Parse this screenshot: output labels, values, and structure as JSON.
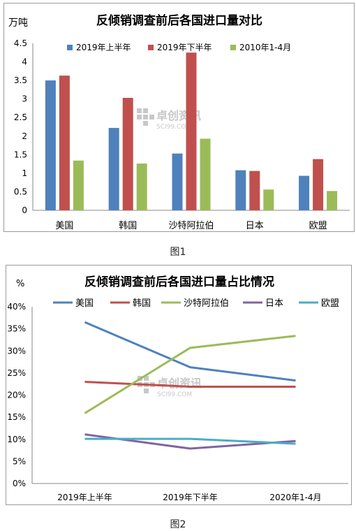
{
  "figure_captions": [
    "图1",
    "图2"
  ],
  "watermark": {
    "text": "卓创资讯",
    "sub": "SCI99.COM"
  },
  "chart_data": [
    {
      "type": "bar",
      "title": "反倾销调查前后各国进口量对比",
      "ylabel": "万吨",
      "xlabel": "",
      "ylim": [
        0,
        4.5
      ],
      "yticks": [
        "0",
        "0.5",
        "1",
        "1.5",
        "2",
        "2.5",
        "3",
        "3.5",
        "4",
        "4.5"
      ],
      "categories": [
        "美国",
        "韩国",
        "沙特阿拉伯",
        "日本",
        "欧盟"
      ],
      "series": [
        {
          "name": "2019年上半年",
          "color": "#4f81bd",
          "values": [
            3.5,
            2.22,
            1.53,
            1.08,
            0.93
          ]
        },
        {
          "name": "2019年下半年",
          "color": "#c0504d",
          "values": [
            3.63,
            3.03,
            4.25,
            1.06,
            1.38
          ]
        },
        {
          "name": "2010年1-4月",
          "color": "#9bbb59",
          "values": [
            1.34,
            1.26,
            1.93,
            0.56,
            0.52
          ]
        }
      ],
      "legend": "top",
      "grid": false
    },
    {
      "type": "line",
      "title": "反倾销调查前后各国进口量占比情况",
      "ylabel": "%",
      "xlabel": "",
      "ylim": [
        0,
        40
      ],
      "yticks": [
        "0%",
        "5%",
        "10%",
        "15%",
        "20%",
        "25%",
        "30%",
        "35%",
        "40%"
      ],
      "x": [
        "2019年上半年",
        "2019年下半年",
        "2020年1-4月"
      ],
      "series": [
        {
          "name": "美国",
          "color": "#4f81bd",
          "values": [
            36.5,
            26.3,
            23.3
          ]
        },
        {
          "name": "韩国",
          "color": "#c0504d",
          "values": [
            23.0,
            21.9,
            21.9
          ]
        },
        {
          "name": "沙特阿拉伯",
          "color": "#9bbb59",
          "values": [
            15.9,
            30.7,
            33.4
          ]
        },
        {
          "name": "日本",
          "color": "#8064a2",
          "values": [
            11.1,
            7.9,
            9.6
          ]
        },
        {
          "name": "欧盟",
          "color": "#4bacc6",
          "values": [
            10.1,
            10.1,
            9.0
          ]
        }
      ],
      "legend": "top",
      "grid": false
    }
  ]
}
